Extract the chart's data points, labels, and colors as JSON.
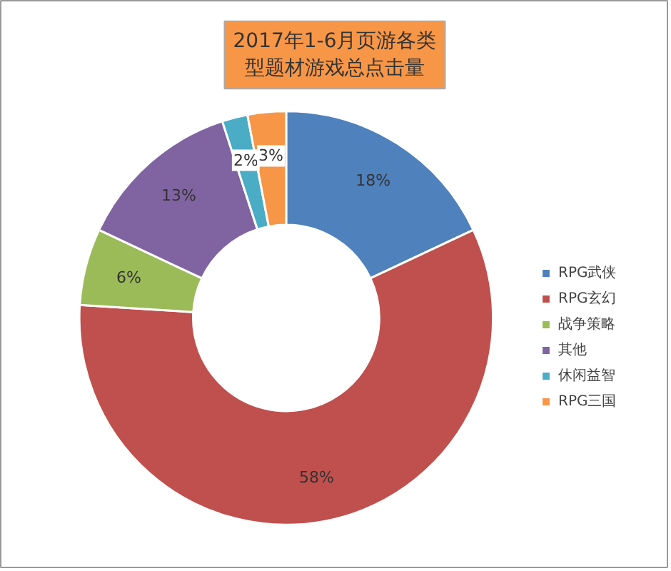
{
  "chart_data": {
    "type": "donut",
    "title": "2017年1-6月页游各类型题材游戏总点击量",
    "categories": [
      "RPG武侠",
      "RPG玄幻",
      "战争策略",
      "其他",
      "休闲益智",
      "RPG三国"
    ],
    "values": [
      18,
      58,
      6,
      13,
      2,
      3
    ],
    "colors": [
      "#4f81bd",
      "#c0504d",
      "#9bbb59",
      "#8064a2",
      "#4bacc6",
      "#f79646"
    ],
    "value_labels": [
      "18%",
      "58%",
      "6%",
      "13%",
      "2%",
      "3%"
    ],
    "legend": "right"
  }
}
